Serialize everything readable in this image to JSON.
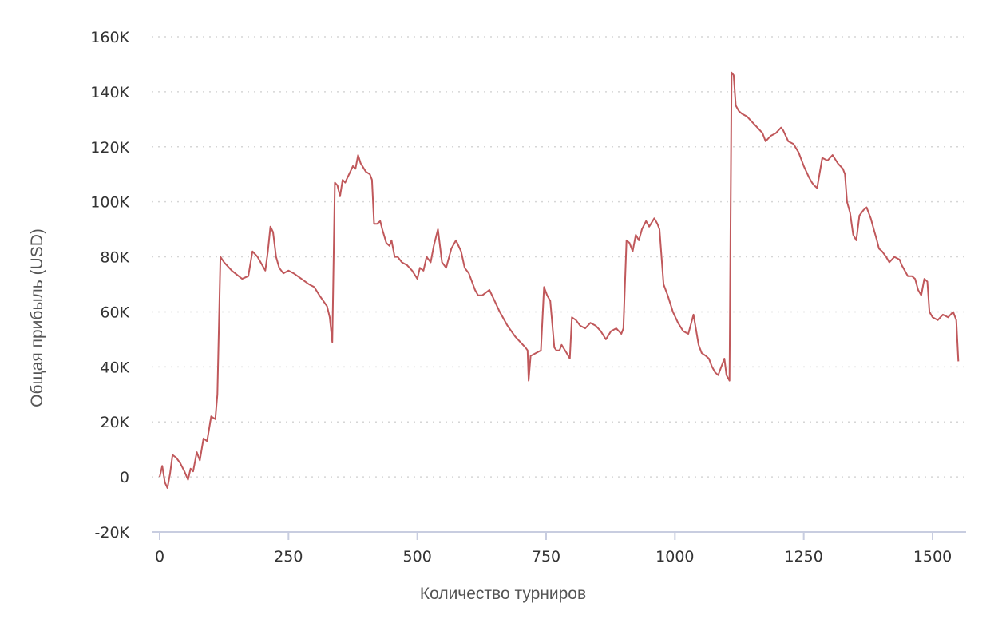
{
  "chart_data": {
    "type": "line",
    "title": "",
    "xlabel": "Количество турниров",
    "ylabel": "Общая прибыль (USD)",
    "xlim": [
      0,
      1570
    ],
    "ylim": [
      -20000,
      160000
    ],
    "x_ticks": [
      {
        "value": 0,
        "label": "0"
      },
      {
        "value": 250,
        "label": "250"
      },
      {
        "value": 500,
        "label": "500"
      },
      {
        "value": 750,
        "label": "750"
      },
      {
        "value": 1000,
        "label": "1000"
      },
      {
        "value": 1250,
        "label": "1250"
      },
      {
        "value": 1500,
        "label": "1500"
      }
    ],
    "y_ticks": [
      {
        "value": -20000,
        "label": "-20K"
      },
      {
        "value": 0,
        "label": "0"
      },
      {
        "value": 20000,
        "label": "20K"
      },
      {
        "value": 40000,
        "label": "40K"
      },
      {
        "value": 60000,
        "label": "60K"
      },
      {
        "value": 80000,
        "label": "80K"
      },
      {
        "value": 100000,
        "label": "100K"
      },
      {
        "value": 120000,
        "label": "120K"
      },
      {
        "value": 140000,
        "label": "140K"
      },
      {
        "value": 160000,
        "label": "160K"
      }
    ],
    "grid": true,
    "series": [
      {
        "color": "#c0585b",
        "x": [
          0,
          5,
          10,
          15,
          20,
          25,
          32,
          40,
          48,
          55,
          60,
          65,
          72,
          78,
          85,
          92,
          100,
          108,
          112,
          118,
          125,
          140,
          160,
          172,
          180,
          190,
          205,
          210,
          215,
          220,
          226,
          232,
          240,
          250,
          260,
          275,
          290,
          300,
          310,
          325,
          330,
          335,
          340,
          345,
          350,
          355,
          360,
          365,
          370,
          375,
          380,
          385,
          390,
          400,
          408,
          412,
          416,
          422,
          428,
          432,
          440,
          446,
          450,
          456,
          462,
          470,
          480,
          490,
          500,
          505,
          512,
          518,
          526,
          532,
          540,
          548,
          556,
          566,
          575,
          585,
          592,
          600,
          612,
          618,
          626,
          640,
          660,
          675,
          690,
          700,
          710,
          714,
          716,
          720,
          730,
          740,
          746,
          752,
          758,
          766,
          770,
          776,
          780,
          790,
          796,
          800,
          808,
          816,
          826,
          836,
          846,
          856,
          866,
          876,
          886,
          896,
          900,
          906,
          912,
          918,
          924,
          930,
          936,
          944,
          950,
          960,
          966,
          970,
          978,
          986,
          996,
          1006,
          1016,
          1026,
          1036,
          1046,
          1052,
          1060,
          1066,
          1072,
          1078,
          1084,
          1090,
          1096,
          1100,
          1106,
          1110,
          1114,
          1118,
          1124,
          1130,
          1140,
          1150,
          1160,
          1170,
          1176,
          1186,
          1196,
          1206,
          1210,
          1220,
          1230,
          1240,
          1250,
          1260,
          1266,
          1270,
          1276,
          1286,
          1296,
          1306,
          1316,
          1326,
          1330,
          1334,
          1340,
          1346,
          1352,
          1358,
          1366,
          1372,
          1380,
          1386,
          1392,
          1396,
          1402,
          1410,
          1416,
          1426,
          1436,
          1440,
          1446,
          1452,
          1460,
          1466,
          1472,
          1478,
          1484,
          1490,
          1494,
          1500,
          1510,
          1520,
          1530,
          1540,
          1546,
          1550
        ],
        "values": [
          0,
          4000,
          -2000,
          -4000,
          1000,
          8000,
          7000,
          5000,
          2000,
          -1000,
          3000,
          2000,
          9000,
          6000,
          14000,
          13000,
          22000,
          21000,
          30000,
          80000,
          78000,
          75000,
          72000,
          73000,
          82000,
          80000,
          75000,
          82000,
          91000,
          89000,
          80000,
          76000,
          74000,
          75000,
          74000,
          72000,
          70000,
          69000,
          66000,
          62000,
          58000,
          49000,
          107000,
          106000,
          102000,
          108000,
          107000,
          109000,
          111000,
          113000,
          112000,
          117000,
          114000,
          111000,
          110000,
          108000,
          92000,
          92000,
          93000,
          90000,
          85000,
          84000,
          86000,
          80000,
          80000,
          78000,
          77000,
          75000,
          72000,
          76000,
          75000,
          80000,
          78000,
          84000,
          90000,
          78000,
          76000,
          83000,
          86000,
          82000,
          76000,
          74000,
          68000,
          66000,
          66000,
          68000,
          60000,
          55000,
          51000,
          49000,
          47000,
          46000,
          35000,
          44000,
          45000,
          46000,
          69000,
          66000,
          64000,
          47000,
          46000,
          46000,
          48000,
          45000,
          43000,
          58000,
          57000,
          55000,
          54000,
          56000,
          55000,
          53000,
          50000,
          53000,
          54000,
          52000,
          54000,
          86000,
          85000,
          82000,
          88000,
          86000,
          90000,
          93000,
          91000,
          94000,
          92000,
          90000,
          70000,
          66000,
          60000,
          56000,
          53000,
          52000,
          59000,
          48000,
          45000,
          44000,
          43000,
          40000,
          38000,
          37000,
          40000,
          43000,
          37000,
          35000,
          147000,
          146000,
          135000,
          133000,
          132000,
          131000,
          129000,
          127000,
          125000,
          122000,
          124000,
          125000,
          127000,
          126000,
          122000,
          121000,
          118000,
          113000,
          109000,
          107000,
          106000,
          105000,
          116000,
          115000,
          117000,
          114000,
          112000,
          110000,
          100000,
          96000,
          88000,
          86000,
          95000,
          97000,
          98000,
          94000,
          90000,
          86000,
          83000,
          82000,
          80000,
          78000,
          80000,
          79000,
          77000,
          75000,
          73000,
          73000,
          72000,
          68000,
          66000,
          72000,
          71000,
          60000,
          58000,
          57000,
          59000,
          58000,
          60000,
          57000,
          42000
        ]
      }
    ]
  }
}
